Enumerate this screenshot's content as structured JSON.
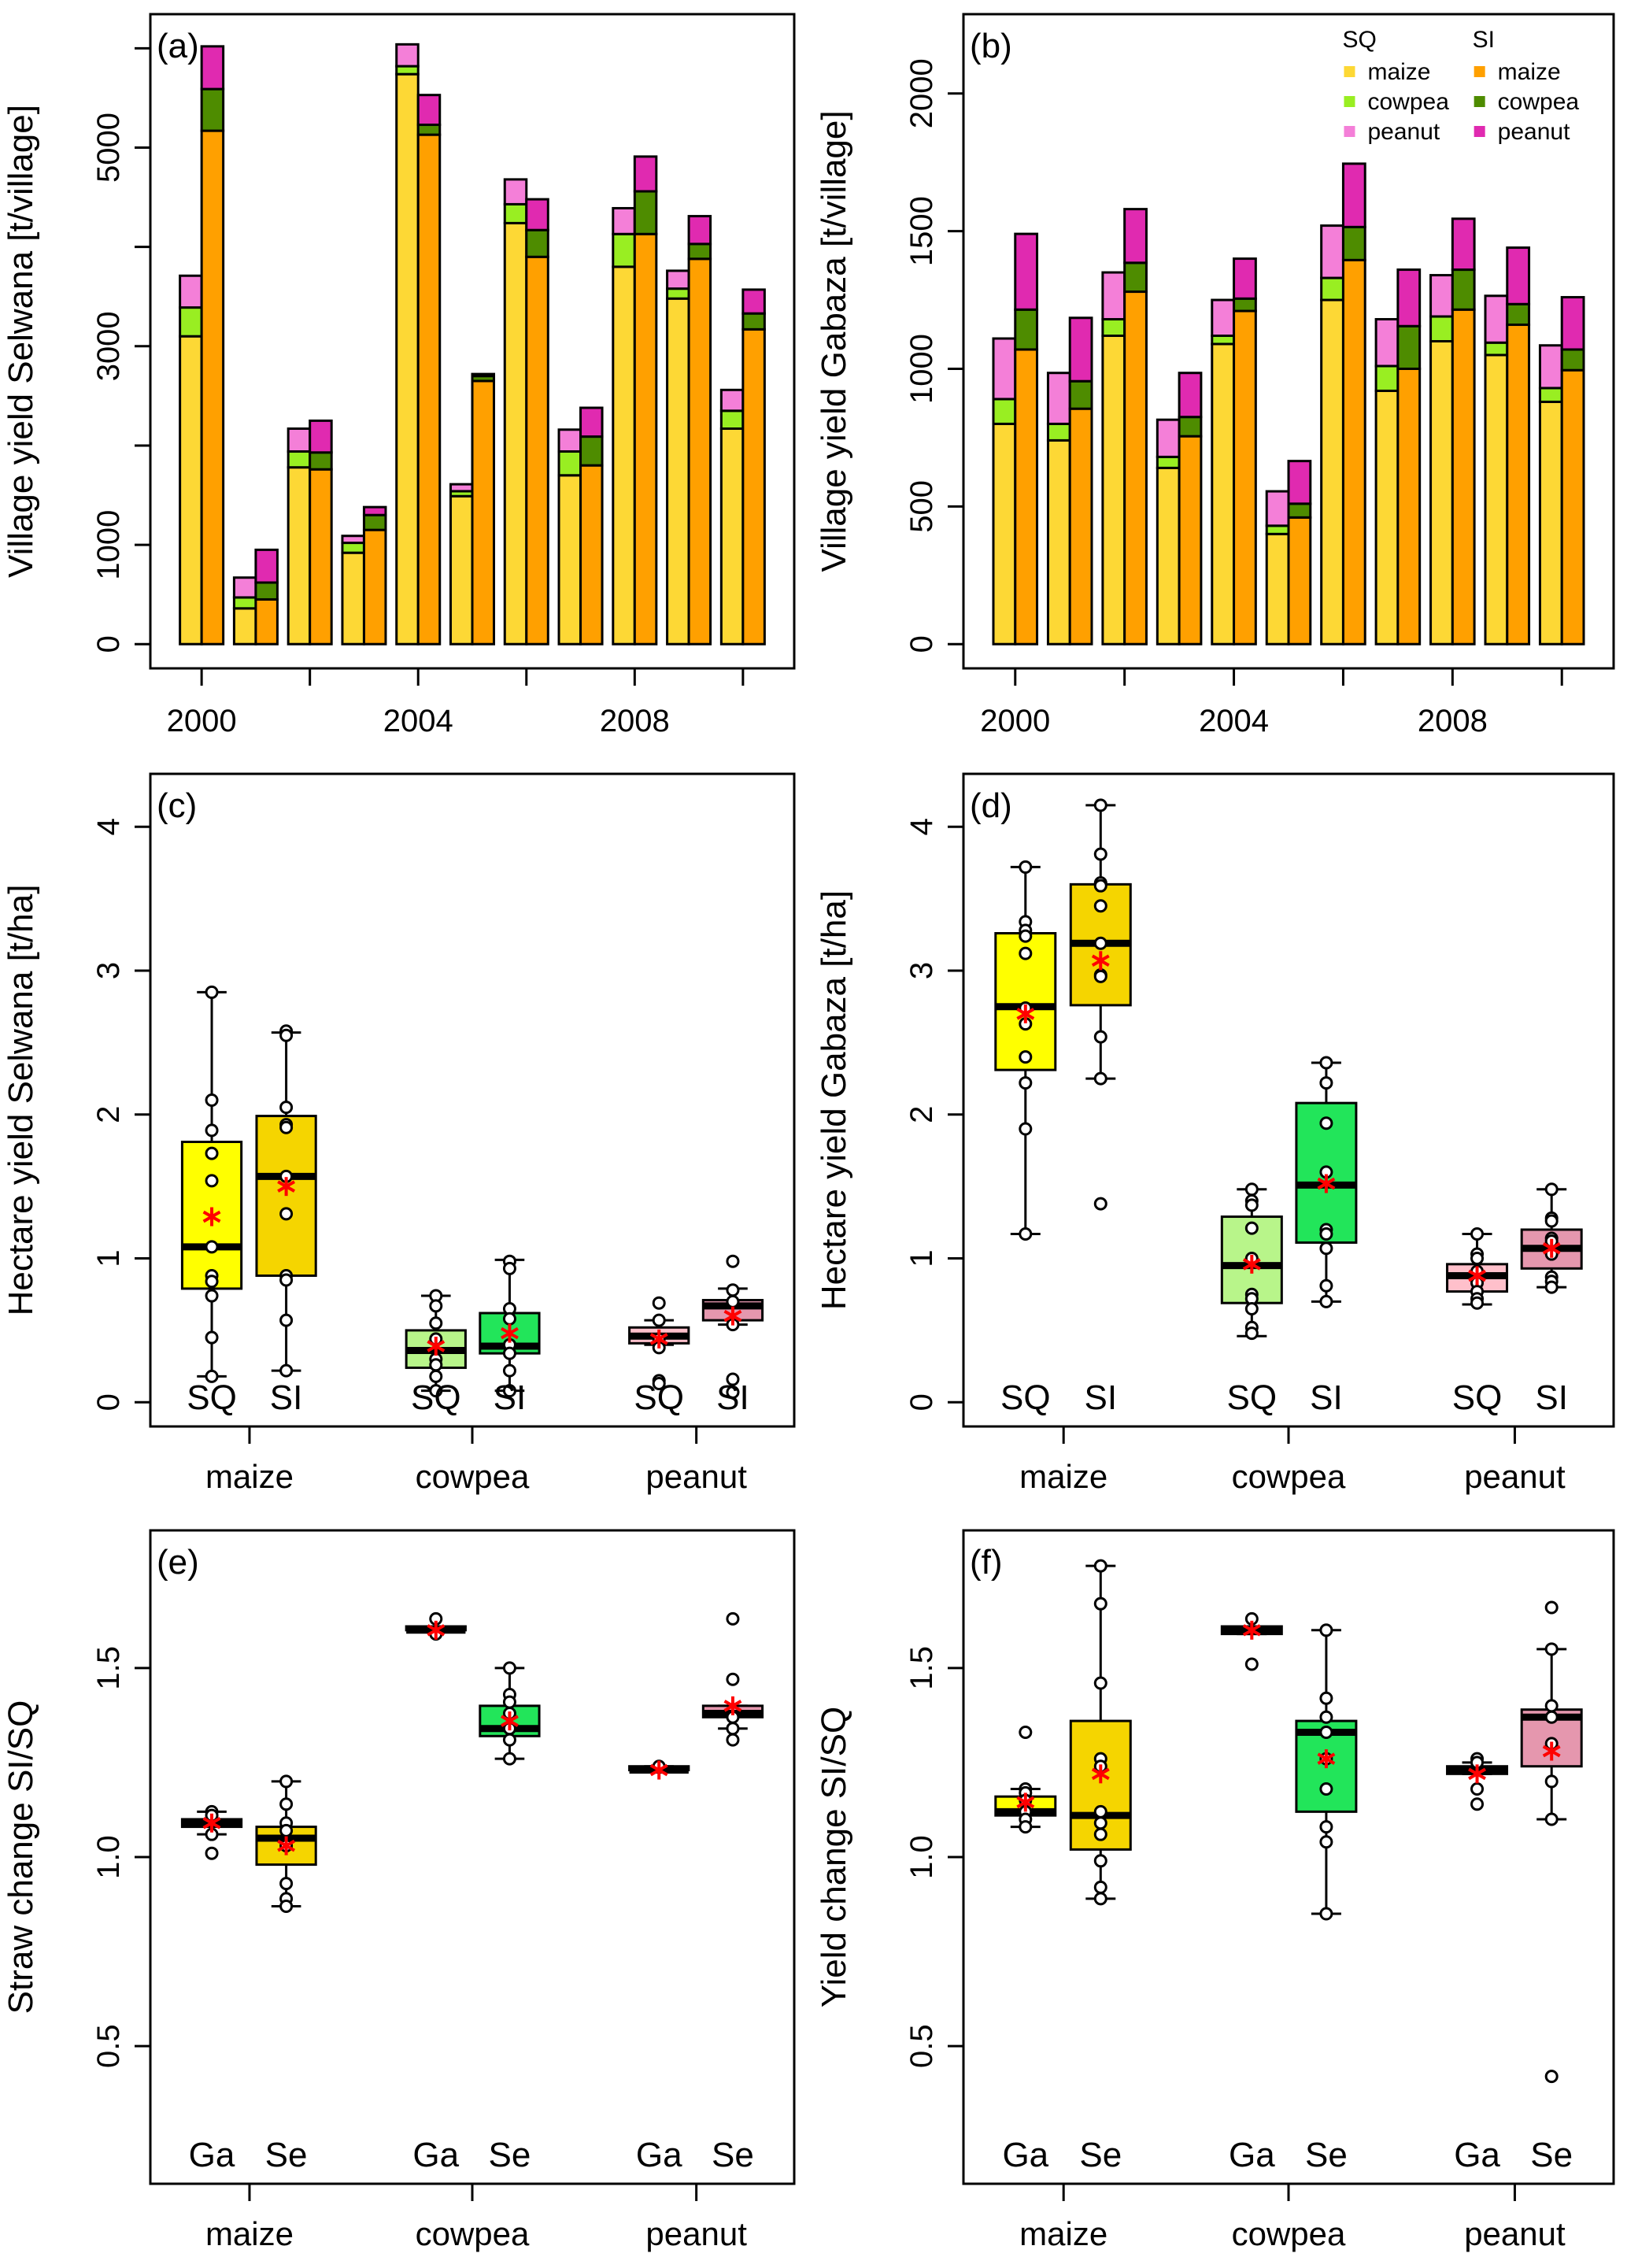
{
  "colors": {
    "SQ": {
      "maize": "#FDD835",
      "cowpea": "#99EE22",
      "peanut": "#F47FD8"
    },
    "SI": {
      "maize": "#FFA000",
      "cowpea": "#4E8C00",
      "peanut": "#E02AB0"
    },
    "box": {
      "maize": [
        "#FFFF00",
        "#F5D500"
      ],
      "cowpea": [
        "#B8F58A",
        "#22E55A"
      ],
      "peanut": [
        "#FFC0CB",
        "#E597AE"
      ]
    },
    "mean_marker": "#FF0000",
    "point_fill": "#FFFFFF"
  },
  "chart_data": [
    {
      "id": "a",
      "type": "bar",
      "stacked": true,
      "panel_label": "(a)",
      "ylabel": "Village yield Selwana [t/village]",
      "ylim": [
        0,
        6100
      ],
      "yticks": [
        0,
        1000,
        2000,
        3000,
        4000,
        5000,
        6000
      ],
      "ytick_labels": [
        "0",
        "1000",
        "",
        "3000",
        "",
        "5000",
        ""
      ],
      "years": [
        2000,
        2001,
        2002,
        2003,
        2004,
        2005,
        2006,
        2007,
        2008,
        2009,
        2010
      ],
      "xticks": [
        2000,
        2002,
        2004,
        2006,
        2008,
        2010
      ],
      "xtick_labels": [
        "2000",
        "",
        "2004",
        "",
        "2008",
        ""
      ],
      "scenarios": [
        "SQ",
        "SI"
      ],
      "series": {
        "SQ": {
          "maize": [
            3100,
            360,
            1780,
            920,
            5740,
            1490,
            4240,
            1700,
            3800,
            3480,
            2170
          ],
          "cowpea": [
            290,
            110,
            160,
            100,
            80,
            50,
            190,
            240,
            330,
            100,
            180
          ],
          "peanut": [
            320,
            200,
            230,
            70,
            220,
            70,
            250,
            220,
            260,
            180,
            210
          ]
        },
        "SI": {
          "maize": [
            5170,
            450,
            1760,
            1150,
            5130,
            2650,
            3900,
            1800,
            4130,
            3880,
            3170
          ],
          "cowpea": [
            420,
            170,
            170,
            150,
            100,
            50,
            270,
            290,
            430,
            150,
            160
          ],
          "peanut": [
            430,
            330,
            320,
            80,
            300,
            20,
            310,
            290,
            350,
            280,
            240
          ]
        }
      }
    },
    {
      "id": "b",
      "type": "bar",
      "stacked": true,
      "panel_label": "(b)",
      "ylabel": "Village yield Gabaza [t/village]",
      "ylim": [
        0,
        2200
      ],
      "yticks": [
        0,
        500,
        1000,
        1500,
        2000
      ],
      "ytick_labels": [
        "0",
        "500",
        "1000",
        "1500",
        "2000"
      ],
      "years": [
        2000,
        2001,
        2002,
        2003,
        2004,
        2005,
        2006,
        2007,
        2008,
        2009,
        2010
      ],
      "xticks": [
        2000,
        2002,
        2004,
        2006,
        2008,
        2010
      ],
      "xtick_labels": [
        "2000",
        "",
        "2004",
        "",
        "2008",
        ""
      ],
      "scenarios": [
        "SQ",
        "SI"
      ],
      "series": {
        "SQ": {
          "maize": [
            800,
            740,
            1120,
            640,
            1090,
            400,
            1250,
            920,
            1100,
            1050,
            880
          ],
          "cowpea": [
            90,
            60,
            60,
            40,
            30,
            30,
            80,
            90,
            90,
            45,
            50
          ],
          "peanut": [
            220,
            185,
            170,
            135,
            130,
            125,
            190,
            170,
            150,
            170,
            155
          ]
        },
        "SI": {
          "maize": [
            1070,
            855,
            1280,
            755,
            1210,
            460,
            1395,
            1000,
            1215,
            1160,
            995
          ],
          "cowpea": [
            145,
            100,
            105,
            70,
            45,
            50,
            120,
            155,
            145,
            75,
            75
          ],
          "peanut": [
            275,
            230,
            195,
            160,
            145,
            155,
            230,
            205,
            185,
            205,
            190
          ]
        }
      },
      "legend": {
        "placement": "top-right",
        "headers": [
          "SQ",
          "SI"
        ],
        "items": [
          "maize",
          "cowpea",
          "peanut"
        ]
      }
    },
    {
      "id": "c",
      "type": "box",
      "panel_label": "(c)",
      "ylabel": "Hectare yield Selwana [t/ha]",
      "ylim": [
        0,
        4.2
      ],
      "yticks": [
        0,
        1,
        2,
        3,
        4
      ],
      "ytick_labels": [
        "0",
        "1",
        "2",
        "3",
        "4"
      ],
      "categories": [
        "maize",
        "cowpea",
        "peanut"
      ],
      "groups": [
        "SQ",
        "SI"
      ],
      "boxes": [
        {
          "whisker_low": 0.18,
          "q1": 0.79,
          "median": 1.08,
          "q3": 1.81,
          "whisker_high": 2.85,
          "mean": 1.29,
          "points": [
            2.85,
            2.1,
            1.89,
            1.73,
            1.54,
            1.08,
            0.88,
            0.84,
            0.74,
            0.45,
            0.18
          ]
        },
        {
          "whisker_low": 0.22,
          "q1": 0.88,
          "median": 1.57,
          "q3": 1.99,
          "whisker_high": 2.57,
          "mean": 1.5,
          "points": [
            2.58,
            2.55,
            2.05,
            1.93,
            1.91,
            1.57,
            1.31,
            0.88,
            0.85,
            0.57,
            0.22
          ]
        },
        {
          "whisker_low": 0.08,
          "q1": 0.24,
          "median": 0.36,
          "q3": 0.5,
          "whisker_high": 0.74,
          "mean": 0.39,
          "points": [
            0.74,
            0.67,
            0.55,
            0.44,
            0.3,
            0.26,
            0.18,
            0.08
          ]
        },
        {
          "whisker_low": 0.08,
          "q1": 0.34,
          "median": 0.39,
          "q3": 0.62,
          "whisker_high": 0.99,
          "mean": 0.48,
          "points": [
            0.98,
            0.93,
            0.65,
            0.58,
            0.4,
            0.34,
            0.22,
            0.08
          ]
        },
        {
          "whisker_low": 0.4,
          "q1": 0.41,
          "median": 0.46,
          "q3": 0.52,
          "whisker_high": 0.57,
          "mean": 0.44,
          "points": [
            0.69,
            0.57,
            0.44,
            0.38,
            0.15,
            0.13
          ]
        },
        {
          "whisker_low": 0.54,
          "q1": 0.57,
          "median": 0.67,
          "q3": 0.71,
          "whisker_high": 0.79,
          "mean": 0.6,
          "points": [
            0.98,
            0.78,
            0.7,
            0.54,
            0.16,
            0.07
          ]
        }
      ]
    },
    {
      "id": "d",
      "type": "box",
      "panel_label": "(d)",
      "ylabel": "Hectare yield Gabaza [t/ha]",
      "ylim": [
        0,
        4.2
      ],
      "yticks": [
        0,
        1,
        2,
        3,
        4
      ],
      "ytick_labels": [
        "0",
        "1",
        "2",
        "3",
        "4"
      ],
      "categories": [
        "maize",
        "cowpea",
        "peanut"
      ],
      "groups": [
        "SQ",
        "SI"
      ],
      "boxes": [
        {
          "whisker_low": 1.17,
          "q1": 2.31,
          "median": 2.75,
          "q3": 3.26,
          "whisker_high": 3.72,
          "mean": 2.7,
          "points": [
            3.72,
            3.34,
            3.28,
            3.24,
            3.12,
            2.74,
            2.63,
            2.4,
            2.22,
            1.9,
            1.17
          ]
        },
        {
          "whisker_low": 2.25,
          "q1": 2.76,
          "median": 3.19,
          "q3": 3.6,
          "whisker_high": 4.15,
          "mean": 3.07,
          "points": [
            4.15,
            3.81,
            3.61,
            3.59,
            3.45,
            3.19,
            2.97,
            2.96,
            2.54,
            2.25,
            1.38
          ]
        },
        {
          "whisker_low": 0.46,
          "q1": 0.69,
          "median": 0.95,
          "q3": 1.29,
          "whisker_high": 1.48,
          "mean": 0.96,
          "points": [
            1.48,
            1.4,
            1.37,
            1.21,
            1.0,
            0.75,
            0.72,
            0.65,
            0.52,
            0.48
          ]
        },
        {
          "whisker_low": 0.7,
          "q1": 1.11,
          "median": 1.51,
          "q3": 2.08,
          "whisker_high": 2.36,
          "mean": 1.52,
          "points": [
            2.36,
            2.22,
            1.94,
            1.6,
            1.2,
            1.17,
            1.07,
            0.81,
            0.7
          ]
        },
        {
          "whisker_low": 0.68,
          "q1": 0.77,
          "median": 0.88,
          "q3": 0.96,
          "whisker_high": 1.17,
          "mean": 0.88,
          "points": [
            1.17,
            1.03,
            1.0,
            0.91,
            0.83,
            0.77,
            0.72,
            0.69
          ]
        },
        {
          "whisker_low": 0.8,
          "q1": 0.93,
          "median": 1.07,
          "q3": 1.2,
          "whisker_high": 1.48,
          "mean": 1.07,
          "points": [
            1.48,
            1.28,
            1.26,
            1.14,
            1.12,
            1.03,
            0.87,
            0.84,
            0.8
          ]
        }
      ]
    },
    {
      "id": "e",
      "type": "box",
      "panel_label": "(e)",
      "ylabel": "Straw change SI/SQ",
      "ylim": [
        0.2,
        1.8
      ],
      "yticks": [
        0.5,
        1.0,
        1.5
      ],
      "ytick_labels": [
        "0.5",
        "1.0",
        "1.5"
      ],
      "categories": [
        "maize",
        "cowpea",
        "peanut"
      ],
      "groups": [
        "Ga",
        "Se"
      ],
      "boxes": [
        {
          "whisker_low": 1.06,
          "q1": 1.08,
          "median": 1.09,
          "q3": 1.1,
          "whisker_high": 1.12,
          "mean": 1.09,
          "points": [
            1.12,
            1.11,
            1.06,
            1.01
          ]
        },
        {
          "whisker_low": 0.87,
          "q1": 0.98,
          "median": 1.05,
          "q3": 1.08,
          "whisker_high": 1.2,
          "mean": 1.03,
          "points": [
            1.2,
            1.14,
            1.09,
            1.07,
            1.03,
            0.93,
            0.89,
            0.87
          ]
        },
        {
          "whisker_low": 1.6,
          "q1": 1.6,
          "median": 1.6,
          "q3": 1.61,
          "whisker_high": 1.61,
          "mean": 1.6,
          "points": [
            1.63,
            1.59
          ]
        },
        {
          "whisker_low": 1.26,
          "q1": 1.32,
          "median": 1.34,
          "q3": 1.4,
          "whisker_high": 1.5,
          "mean": 1.36,
          "points": [
            1.5,
            1.43,
            1.41,
            1.38,
            1.34,
            1.31,
            1.26
          ]
        },
        {
          "whisker_low": 1.23,
          "q1": 1.23,
          "median": 1.23,
          "q3": 1.24,
          "whisker_high": 1.24,
          "mean": 1.23,
          "points": [
            1.24
          ]
        },
        {
          "whisker_low": 1.34,
          "q1": 1.37,
          "median": 1.38,
          "q3": 1.4,
          "whisker_high": 1.4,
          "mean": 1.4,
          "points": [
            1.63,
            1.47,
            1.37,
            1.34,
            1.31
          ]
        }
      ]
    },
    {
      "id": "f",
      "type": "box",
      "panel_label": "(f)",
      "ylabel": "Yield change SI/SQ",
      "ylim": [
        0.2,
        1.8
      ],
      "yticks": [
        0.5,
        1.0,
        1.5
      ],
      "ytick_labels": [
        "0.5",
        "1.0",
        "1.5"
      ],
      "categories": [
        "maize",
        "cowpea",
        "peanut"
      ],
      "groups": [
        "Ga",
        "Se"
      ],
      "boxes": [
        {
          "whisker_low": 1.08,
          "q1": 1.11,
          "median": 1.12,
          "q3": 1.16,
          "whisker_high": 1.18,
          "mean": 1.145,
          "points": [
            1.33,
            1.18,
            1.17,
            1.15,
            1.12,
            1.1,
            1.08
          ]
        },
        {
          "whisker_low": 0.89,
          "q1": 1.02,
          "median": 1.11,
          "q3": 1.36,
          "whisker_high": 1.77,
          "mean": 1.22,
          "points": [
            1.77,
            1.67,
            1.46,
            1.26,
            1.24,
            1.12,
            1.09,
            1.06,
            0.99,
            0.92,
            0.89
          ]
        },
        {
          "whisker_low": 1.59,
          "q1": 1.59,
          "median": 1.6,
          "q3": 1.61,
          "whisker_high": 1.61,
          "mean": 1.6,
          "points": [
            1.63,
            1.51
          ]
        },
        {
          "whisker_low": 0.85,
          "q1": 1.12,
          "median": 1.33,
          "q3": 1.36,
          "whisker_high": 1.6,
          "mean": 1.26,
          "points": [
            1.6,
            1.42,
            1.37,
            1.33,
            1.26,
            1.18,
            1.08,
            1.04,
            0.85
          ]
        },
        {
          "whisker_low": 1.22,
          "q1": 1.22,
          "median": 1.23,
          "q3": 1.24,
          "whisker_high": 1.25,
          "mean": 1.22,
          "points": [
            1.26,
            1.25,
            1.18,
            1.14
          ]
        },
        {
          "whisker_low": 1.1,
          "q1": 1.24,
          "median": 1.37,
          "q3": 1.39,
          "whisker_high": 1.55,
          "mean": 1.28,
          "points": [
            1.66,
            1.55,
            1.4,
            1.37,
            1.3,
            1.2,
            1.1,
            0.42
          ]
        }
      ]
    }
  ]
}
